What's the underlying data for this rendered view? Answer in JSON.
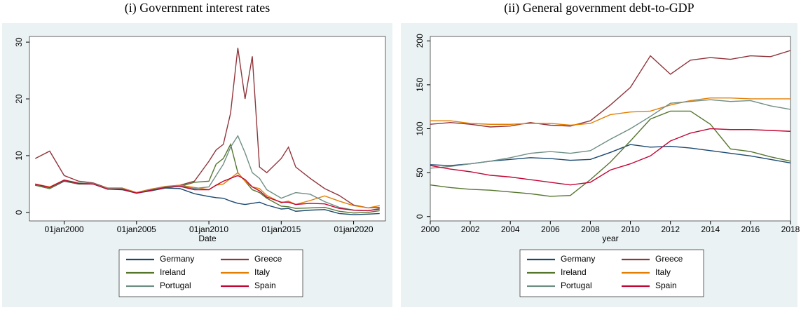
{
  "chart_data": [
    {
      "type": "line",
      "title": "(i) Government interest rates",
      "x_label": "Date",
      "x": [
        1998,
        1999,
        2000,
        2001,
        2002,
        2003,
        2004,
        2005,
        2006,
        2007,
        2008,
        2009,
        2010,
        2010.5,
        2011,
        2011.5,
        2012,
        2012.5,
        2013,
        2013.5,
        2014,
        2015,
        2015.5,
        2016,
        2017,
        2018,
        2019,
        2020,
        2021,
        2021.8
      ],
      "xlim": [
        1997.6,
        2022.2
      ],
      "xticks": [
        {
          "value": 2000,
          "label": "01jan2000"
        },
        {
          "value": 2005,
          "label": "01jan2005"
        },
        {
          "value": 2010,
          "label": "01jan2010"
        },
        {
          "value": 2015,
          "label": "01jan2015"
        },
        {
          "value": 2020,
          "label": "01jan2020"
        }
      ],
      "ylim": [
        -1.5,
        31
      ],
      "yticks": [
        0,
        10,
        20,
        30
      ],
      "grid": false,
      "legend": "bottom",
      "series": [
        {
          "name": "Germany",
          "color": "#1a476f",
          "values": [
            4.8,
            4.2,
            5.5,
            5.0,
            5.0,
            4.1,
            4.0,
            3.4,
            3.8,
            4.3,
            4.2,
            3.3,
            2.8,
            2.6,
            2.5,
            2.0,
            1.6,
            1.4,
            1.6,
            1.8,
            1.3,
            0.6,
            0.7,
            0.2,
            0.4,
            0.5,
            -0.2,
            -0.4,
            -0.3,
            -0.2
          ]
        },
        {
          "name": "Greece",
          "color": "#90353b",
          "values": [
            9.5,
            10.8,
            6.5,
            5.5,
            5.2,
            4.3,
            4.3,
            3.5,
            4.1,
            4.5,
            4.8,
            5.5,
            9.0,
            11.0,
            12.0,
            17.5,
            29.0,
            20.0,
            27.5,
            8.0,
            7.0,
            9.5,
            11.5,
            8.0,
            6.0,
            4.2,
            3.0,
            1.3,
            0.8,
            0.9
          ]
        },
        {
          "name": "Ireland",
          "color": "#55752f",
          "values": [
            4.8,
            4.2,
            5.6,
            5.0,
            5.1,
            4.1,
            4.1,
            3.4,
            3.9,
            4.4,
            4.6,
            5.3,
            5.5,
            8.5,
            9.5,
            12.0,
            7.0,
            5.5,
            4.0,
            3.5,
            2.5,
            1.1,
            1.0,
            0.7,
            0.8,
            0.9,
            0.2,
            -0.1,
            0.0,
            0.3
          ]
        },
        {
          "name": "Italy",
          "color": "#e37e00",
          "values": [
            5.0,
            4.5,
            5.7,
            5.2,
            5.0,
            4.3,
            4.3,
            3.5,
            4.1,
            4.6,
            4.8,
            4.4,
            4.0,
            4.8,
            5.0,
            6.0,
            7.0,
            5.5,
            4.5,
            4.2,
            3.0,
            1.7,
            2.0,
            1.4,
            2.1,
            2.9,
            2.0,
            1.2,
            0.8,
            1.2
          ]
        },
        {
          "name": "Portugal",
          "color": "#6e8e84",
          "values": [
            5.0,
            4.3,
            5.7,
            5.2,
            5.1,
            4.2,
            4.2,
            3.4,
            4.0,
            4.5,
            4.7,
            4.2,
            4.5,
            6.5,
            8.5,
            11.5,
            13.5,
            10.5,
            7.0,
            6.0,
            4.0,
            2.5,
            3.0,
            3.5,
            3.2,
            1.9,
            0.9,
            0.4,
            0.3,
            0.7
          ]
        },
        {
          "name": "Spain",
          "color": "#c10534",
          "values": [
            5.0,
            4.4,
            5.7,
            5.1,
            5.0,
            4.1,
            4.1,
            3.4,
            3.9,
            4.4,
            4.6,
            4.0,
            4.0,
            4.8,
            5.5,
            6.0,
            6.5,
            5.8,
            4.5,
            3.8,
            2.7,
            1.8,
            1.8,
            1.4,
            1.6,
            1.5,
            0.7,
            0.4,
            0.3,
            0.6
          ]
        }
      ]
    },
    {
      "type": "line",
      "title": "(ii) General government debt-to-GDP",
      "x_label": "year",
      "x": [
        2000,
        2001,
        2002,
        2003,
        2004,
        2005,
        2006,
        2007,
        2008,
        2009,
        2010,
        2011,
        2012,
        2013,
        2014,
        2015,
        2016,
        2017,
        2018
      ],
      "xlim": [
        2000,
        2018
      ],
      "xticks": [
        2000,
        2002,
        2004,
        2006,
        2008,
        2010,
        2012,
        2014,
        2016,
        2018
      ],
      "ylim": [
        -5,
        205
      ],
      "yticks": [
        0,
        50,
        100,
        150,
        200
      ],
      "grid": false,
      "legend": "bottom",
      "series": [
        {
          "name": "Germany",
          "color": "#1a476f",
          "values": [
            59,
            58,
            60,
            63,
            65,
            67,
            66,
            64,
            65,
            73,
            82,
            79,
            80,
            78,
            75,
            72,
            69,
            65,
            61
          ]
        },
        {
          "name": "Greece",
          "color": "#90353b",
          "values": [
            105,
            107,
            105,
            102,
            103,
            107,
            104,
            103,
            109,
            127,
            147,
            183,
            162,
            178,
            181,
            179,
            183,
            182,
            189
          ]
        },
        {
          "name": "Ireland",
          "color": "#55752f",
          "values": [
            36,
            33,
            31,
            30,
            28,
            26,
            23,
            24,
            42,
            62,
            86,
            111,
            120,
            120,
            105,
            77,
            74,
            68,
            63
          ]
        },
        {
          "name": "Italy",
          "color": "#e37e00",
          "values": [
            109,
            109,
            106,
            105,
            105,
            106,
            106,
            104,
            106,
            116,
            119,
            120,
            127,
            132,
            135,
            135,
            134,
            134,
            134
          ]
        },
        {
          "name": "Portugal",
          "color": "#6e8e84",
          "values": [
            55,
            57,
            60,
            63,
            67,
            72,
            74,
            72,
            75,
            88,
            100,
            114,
            129,
            131,
            133,
            131,
            132,
            126,
            122
          ]
        },
        {
          "name": "Spain",
          "color": "#c10534",
          "values": [
            58,
            54,
            51,
            47,
            45,
            42,
            39,
            36,
            39,
            53,
            60,
            69,
            86,
            95,
            100,
            99,
            99,
            98,
            97
          ]
        }
      ]
    }
  ]
}
